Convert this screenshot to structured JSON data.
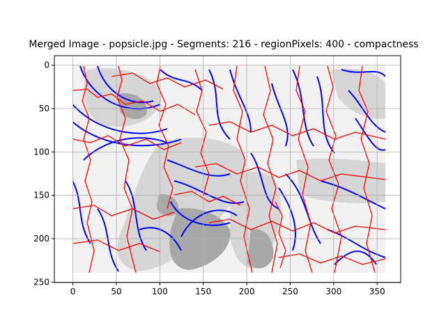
{
  "chart_data": {
    "type": "image",
    "title": "Merged Image - popsicle.jpg - Segments: 216 - regionPixels: 400 - compactness",
    "xlabel": "",
    "ylabel": "",
    "xlim": [
      -0.5,
      359.5
    ],
    "ylim": [
      239.5,
      -0.5
    ],
    "x_ticks": [
      0,
      50,
      100,
      150,
      200,
      250,
      300,
      350
    ],
    "y_ticks": [
      0,
      50,
      100,
      150,
      200,
      250
    ],
    "grid": true,
    "colors": {
      "background_light": "#f2f2f2",
      "background_mid": "#d6d6d6",
      "background_dark": "#a8a8a8",
      "segment_boundary": "#ff0000",
      "contour_lines": "#0000ff",
      "grid": "#b0b0b0"
    }
  }
}
